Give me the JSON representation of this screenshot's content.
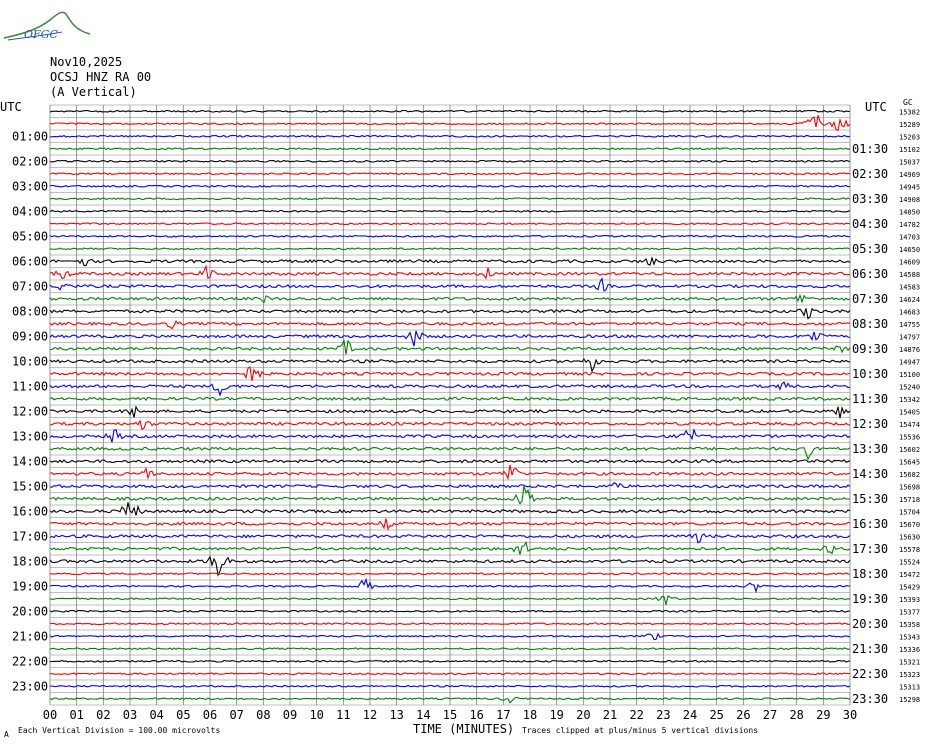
{
  "logo": {
    "text": "OFGC"
  },
  "header": {
    "date": "Nov10,2025",
    "station": "OCSJ HNZ RA 00",
    "orientation": "(A Vertical)"
  },
  "left_axis_title": "UTC",
  "right_axis_title": "UTC",
  "right_top_label": "GC",
  "footer": {
    "scale_note": "Each Vertical Division =  100.00 microvolts",
    "clip_note": "Traces clipped at plus/minus 5 vertical divisions",
    "corner_mark": "A"
  },
  "colors": {
    "grid": "#808080",
    "trace_cycle": [
      "#000000",
      "#ff0000",
      "#0000ff",
      "#008000"
    ]
  },
  "chart_data": {
    "type": "line",
    "description_kind": "helicorder",
    "xlabel": "TIME (MINUTES)",
    "x_ticks": [
      "00",
      "01",
      "02",
      "03",
      "04",
      "05",
      "06",
      "07",
      "08",
      "09",
      "10",
      "11",
      "12",
      "13",
      "14",
      "15",
      "16",
      "17",
      "18",
      "19",
      "20",
      "21",
      "22",
      "23",
      "24",
      "25",
      "26",
      "27",
      "28",
      "29",
      "30"
    ],
    "xlim": [
      0,
      30
    ],
    "left_hour_labels": [
      "01:00",
      "02:00",
      "03:00",
      "04:00",
      "05:00",
      "06:00",
      "07:00",
      "08:00",
      "09:00",
      "10:00",
      "11:00",
      "12:00",
      "13:00",
      "14:00",
      "15:00",
      "16:00",
      "17:00",
      "18:00",
      "19:00",
      "20:00",
      "21:00",
      "22:00",
      "23:00"
    ],
    "right_half_labels": [
      "01:30",
      "02:30",
      "03:30",
      "04:30",
      "05:30",
      "06:30",
      "07:30",
      "08:30",
      "09:30",
      "10:30",
      "11:30",
      "12:30",
      "13:30",
      "14:30",
      "15:30",
      "16:30",
      "17:30",
      "18:30",
      "19:30",
      "20:30",
      "21:30",
      "22:30",
      "23:30"
    ],
    "trace_offsets": [
      "15382",
      "15289",
      "15203",
      "15102",
      "15037",
      "14969",
      "14945",
      "14908",
      "14850",
      "14782",
      "14703",
      "14650",
      "14609",
      "14588",
      "14583",
      "14624",
      "14683",
      "14755",
      "14797",
      "14876",
      "14947",
      "15100",
      "15240",
      "15342",
      "15405",
      "15474",
      "15536",
      "15602",
      "15645",
      "15682",
      "15698",
      "15718",
      "15704",
      "15670",
      "15630",
      "15578",
      "15524",
      "15472",
      "15429",
      "15393",
      "15377",
      "15358",
      "15343",
      "15336",
      "15321",
      "15323",
      "15313",
      "15298"
    ],
    "rows": 48,
    "grid": true,
    "events": [
      {
        "row": 1,
        "minute": 28.7,
        "amplitude": 22
      },
      {
        "row": 1,
        "minute": 29.6,
        "amplitude": 12
      },
      {
        "row": 6,
        "minute": 29.8,
        "amplitude": 3
      },
      {
        "row": 12,
        "minute": 1.3,
        "amplitude": 7
      },
      {
        "row": 12,
        "minute": 22.5,
        "amplitude": 8
      },
      {
        "row": 13,
        "minute": 0.5,
        "amplitude": 10
      },
      {
        "row": 13,
        "minute": 5.9,
        "amplitude": 10
      },
      {
        "row": 13,
        "minute": 16.4,
        "amplitude": 8
      },
      {
        "row": 14,
        "minute": 0.5,
        "amplitude": 9
      },
      {
        "row": 14,
        "minute": 20.7,
        "amplitude": 8
      },
      {
        "row": 15,
        "minute": 28.2,
        "amplitude": 9
      },
      {
        "row": 15,
        "minute": 8.0,
        "amplitude": 6
      },
      {
        "row": 16,
        "minute": 28.4,
        "amplitude": 10
      },
      {
        "row": 17,
        "minute": 4.6,
        "amplitude": 7
      },
      {
        "row": 18,
        "minute": 13.7,
        "amplitude": 14
      },
      {
        "row": 18,
        "minute": 28.7,
        "amplitude": 10
      },
      {
        "row": 19,
        "minute": 11.1,
        "amplitude": 12
      },
      {
        "row": 19,
        "minute": 29.6,
        "amplitude": 8
      },
      {
        "row": 20,
        "minute": 20.3,
        "amplitude": 12
      },
      {
        "row": 21,
        "minute": 7.6,
        "amplitude": 16
      },
      {
        "row": 22,
        "minute": 6.4,
        "amplitude": 12
      },
      {
        "row": 22,
        "minute": 27.5,
        "amplitude": 8
      },
      {
        "row": 24,
        "minute": 3.2,
        "amplitude": 10
      },
      {
        "row": 24,
        "minute": 29.6,
        "amplitude": 8
      },
      {
        "row": 25,
        "minute": 3.5,
        "amplitude": 9
      },
      {
        "row": 26,
        "minute": 2.4,
        "amplitude": 10
      },
      {
        "row": 26,
        "minute": 24.0,
        "amplitude": 14
      },
      {
        "row": 27,
        "minute": 28.4,
        "amplitude": 12
      },
      {
        "row": 29,
        "minute": 3.6,
        "amplitude": 9
      },
      {
        "row": 29,
        "minute": 17.3,
        "amplitude": 16
      },
      {
        "row": 30,
        "minute": 21.2,
        "amplitude": 8
      },
      {
        "row": 31,
        "minute": 17.8,
        "amplitude": 22
      },
      {
        "row": 32,
        "minute": 3.0,
        "amplitude": 22
      },
      {
        "row": 33,
        "minute": 12.6,
        "amplitude": 8
      },
      {
        "row": 34,
        "minute": 24.3,
        "amplitude": 8
      },
      {
        "row": 35,
        "minute": 17.7,
        "amplitude": 14
      },
      {
        "row": 35,
        "minute": 29.2,
        "amplitude": 9
      },
      {
        "row": 36,
        "minute": 6.3,
        "amplitude": 24
      },
      {
        "row": 38,
        "minute": 11.8,
        "amplitude": 10
      },
      {
        "row": 38,
        "minute": 26.4,
        "amplitude": 8
      },
      {
        "row": 39,
        "minute": 23.1,
        "amplitude": 9
      },
      {
        "row": 42,
        "minute": 22.6,
        "amplitude": 7
      },
      {
        "row": 47,
        "minute": 17.2,
        "amplitude": 6
      }
    ]
  }
}
